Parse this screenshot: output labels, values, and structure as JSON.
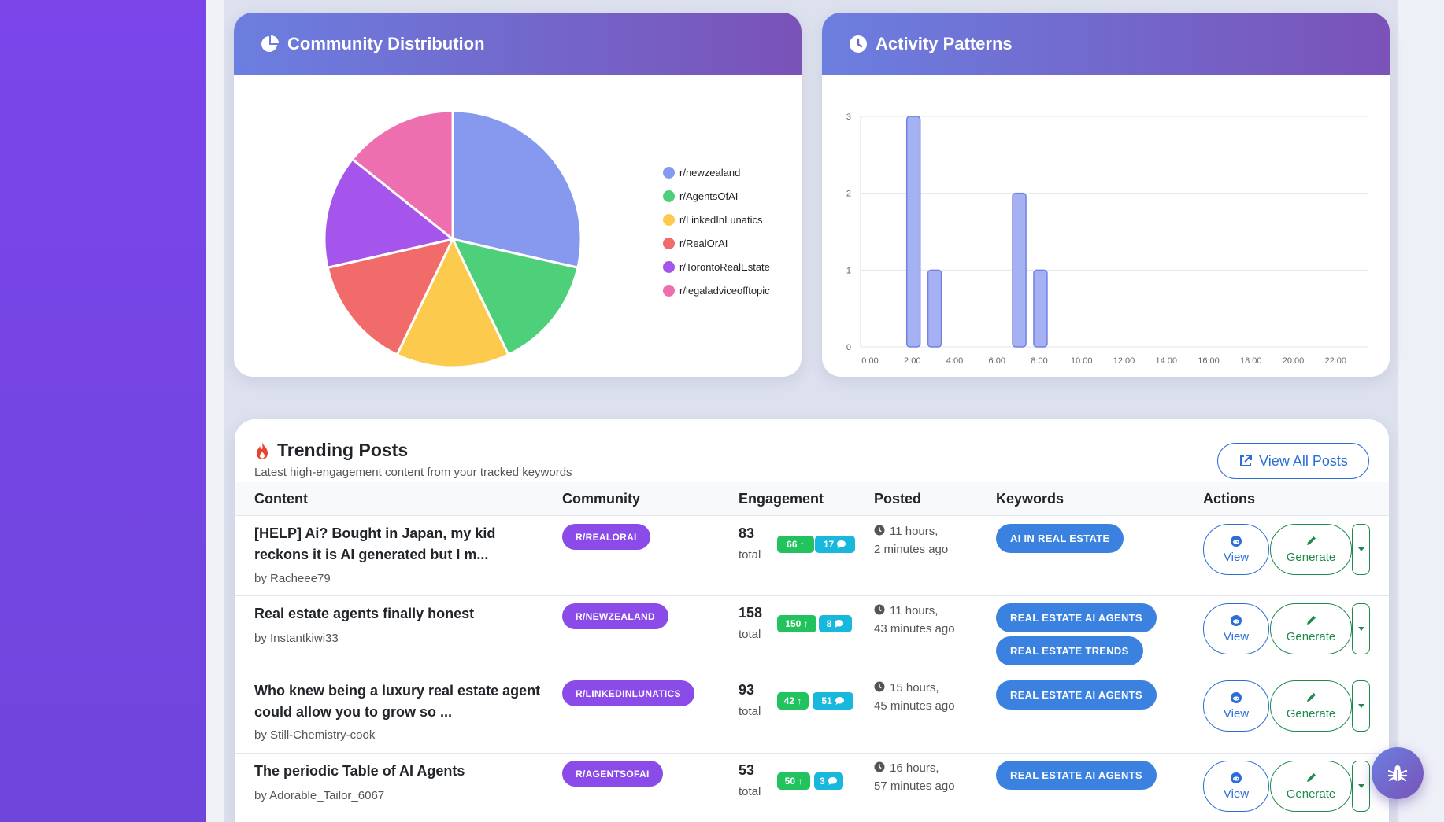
{
  "community_chart": {
    "title": "Community Distribution",
    "chart_data": {
      "type": "pie",
      "categories": [
        "r/newzealand",
        "r/AgentsOfAI",
        "r/LinkedInLunatics",
        "r/RealOrAI",
        "r/TorontoRealEstate",
        "r/legaladviceofftopic"
      ],
      "values": [
        2,
        1,
        1,
        1,
        1,
        1
      ],
      "colors": [
        "#8799ee",
        "#4ecf7a",
        "#fccb4e",
        "#f16b6b",
        "#a655ec",
        "#ee6fb0"
      ]
    }
  },
  "activity_chart": {
    "title": "Activity Patterns",
    "chart_data": {
      "type": "bar",
      "x": [
        0,
        1,
        2,
        3,
        4,
        5,
        6,
        7,
        8,
        9,
        10,
        11,
        12,
        13,
        14,
        15,
        16,
        17,
        18,
        19,
        20,
        21,
        22,
        23
      ],
      "values": [
        0,
        0,
        3,
        1,
        0,
        0,
        0,
        2,
        1,
        0,
        0,
        0,
        0,
        0,
        0,
        0,
        0,
        0,
        0,
        0,
        0,
        0,
        0,
        0
      ],
      "xtick_labels": [
        "0:00",
        "2:00",
        "4:00",
        "6:00",
        "8:00",
        "10:00",
        "12:00",
        "14:00",
        "16:00",
        "18:00",
        "20:00",
        "22:00"
      ],
      "yticks": [
        "0",
        "1",
        "2",
        "3"
      ],
      "ylim": [
        0,
        3
      ]
    }
  },
  "trending": {
    "title": "Trending Posts",
    "subtitle": "Latest high-engagement content from your tracked keywords",
    "view_all_label": "View All Posts",
    "columns": {
      "content": "Content",
      "community": "Community",
      "engagement": "Engagement",
      "posted": "Posted",
      "keywords": "Keywords",
      "actions": "Actions"
    },
    "total_label": "total",
    "view_label": "View",
    "generate_label": "Generate",
    "rows": [
      {
        "title": "[HELP] Ai? Bought in Japan, my kid reckons it is AI generated but I m...",
        "author": "by Racheee79",
        "community": "R/REALORAI",
        "engagement": "83",
        "upvotes": "66 ↑",
        "comments": "17",
        "posted_line1": "11 hours,",
        "posted_line2": "2 minutes ago",
        "keywords": [
          "AI IN REAL ESTATE"
        ]
      },
      {
        "title": "Real estate agents finally honest",
        "author": "by Instantkiwi33",
        "community": "R/NEWZEALAND",
        "engagement": "158",
        "upvotes": "150 ↑",
        "comments": "8",
        "posted_line1": "11 hours,",
        "posted_line2": "43 minutes ago",
        "keywords": [
          "REAL ESTATE AI AGENTS",
          "REAL ESTATE TRENDS"
        ]
      },
      {
        "title": "Who knew being a luxury real estate agent could allow you to grow so ...",
        "author": "by Still-Chemistry-cook",
        "community": "R/LINKEDINLUNATICS",
        "engagement": "93",
        "upvotes": "42 ↑",
        "comments": "51",
        "posted_line1": "15 hours,",
        "posted_line2": "45 minutes ago",
        "keywords": [
          "REAL ESTATE AI AGENTS"
        ]
      },
      {
        "title": "The periodic Table of AI Agents",
        "author": "by Adorable_Tailor_6067",
        "community": "R/AGENTSOFAI",
        "engagement": "53",
        "upvotes": "50 ↑",
        "comments": "3",
        "posted_line1": "16 hours,",
        "posted_line2": "57 minutes ago",
        "keywords": [
          "REAL ESTATE AI AGENTS"
        ]
      }
    ]
  }
}
